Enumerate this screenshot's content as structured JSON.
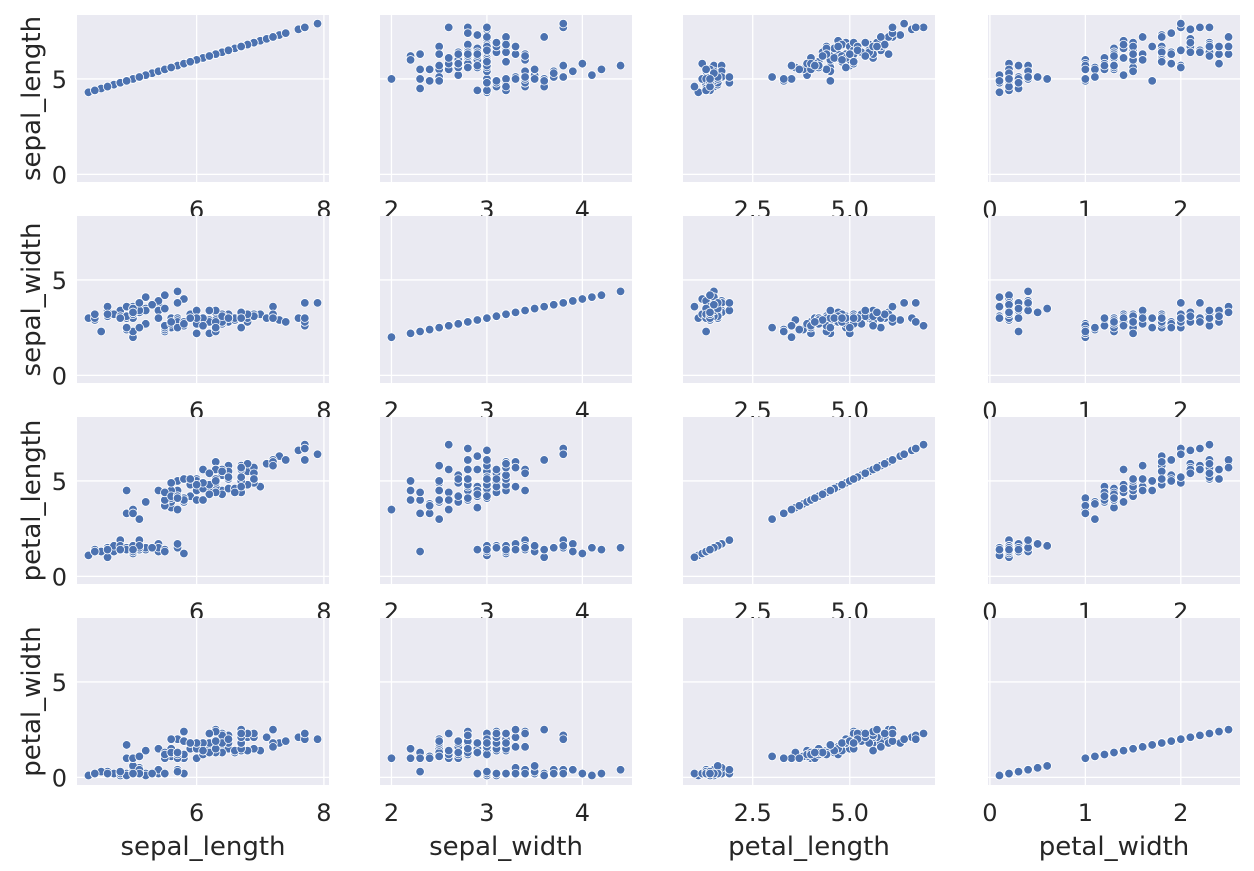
{
  "chart_data": {
    "type": "scatter",
    "layout": "pairplot 4x4, scatter on diagonal, shared y axis",
    "variables": [
      "sepal_length",
      "sepal_width",
      "petal_length",
      "petal_width"
    ],
    "x_ticks": [
      [
        6,
        8
      ],
      [
        2,
        3,
        4
      ],
      [
        "2.5",
        "5.0"
      ],
      [
        0,
        1,
        2
      ]
    ],
    "x_tick_values": [
      [
        6,
        8
      ],
      [
        2,
        3,
        4
      ],
      [
        2.5,
        5.0
      ],
      [
        0,
        1,
        2
      ]
    ],
    "x_ranges": [
      [
        4.12,
        8.08
      ],
      [
        1.88,
        4.52
      ],
      [
        0.705,
        7.195
      ],
      [
        -0.02,
        2.62
      ]
    ],
    "y_ticks": [
      0,
      5
    ],
    "y_range": [
      -0.4,
      8.35
    ],
    "grid": true,
    "colors": {
      "background": "#eaeaf2",
      "point": "#4c72b0",
      "point_edge": "#ffffff",
      "grid": "#ffffff",
      "text": "#262626"
    },
    "rows": [
      [
        5.1,
        3.5,
        1.4,
        0.2
      ],
      [
        4.9,
        3.0,
        1.4,
        0.2
      ],
      [
        4.7,
        3.2,
        1.3,
        0.2
      ],
      [
        4.6,
        3.1,
        1.5,
        0.2
      ],
      [
        5.0,
        3.6,
        1.4,
        0.2
      ],
      [
        5.4,
        3.9,
        1.7,
        0.4
      ],
      [
        4.6,
        3.4,
        1.4,
        0.3
      ],
      [
        5.0,
        3.4,
        1.5,
        0.2
      ],
      [
        4.4,
        2.9,
        1.4,
        0.2
      ],
      [
        4.9,
        3.1,
        1.5,
        0.1
      ],
      [
        5.4,
        3.7,
        1.5,
        0.2
      ],
      [
        4.8,
        3.4,
        1.6,
        0.2
      ],
      [
        4.8,
        3.0,
        1.4,
        0.1
      ],
      [
        4.3,
        3.0,
        1.1,
        0.1
      ],
      [
        5.8,
        4.0,
        1.2,
        0.2
      ],
      [
        5.7,
        4.4,
        1.5,
        0.4
      ],
      [
        5.4,
        3.9,
        1.3,
        0.4
      ],
      [
        5.1,
        3.5,
        1.4,
        0.3
      ],
      [
        5.7,
        3.8,
        1.7,
        0.3
      ],
      [
        5.1,
        3.8,
        1.5,
        0.3
      ],
      [
        5.4,
        3.4,
        1.7,
        0.2
      ],
      [
        5.1,
        3.7,
        1.5,
        0.4
      ],
      [
        4.6,
        3.6,
        1.0,
        0.2
      ],
      [
        5.1,
        3.3,
        1.7,
        0.5
      ],
      [
        4.8,
        3.4,
        1.9,
        0.2
      ],
      [
        5.0,
        3.0,
        1.6,
        0.2
      ],
      [
        5.0,
        3.4,
        1.6,
        0.4
      ],
      [
        5.2,
        3.5,
        1.5,
        0.2
      ],
      [
        5.2,
        3.4,
        1.4,
        0.2
      ],
      [
        4.7,
        3.2,
        1.6,
        0.2
      ],
      [
        4.8,
        3.1,
        1.6,
        0.2
      ],
      [
        5.4,
        3.4,
        1.5,
        0.4
      ],
      [
        5.2,
        4.1,
        1.5,
        0.1
      ],
      [
        5.5,
        4.2,
        1.4,
        0.2
      ],
      [
        4.9,
        3.1,
        1.5,
        0.2
      ],
      [
        5.0,
        3.2,
        1.2,
        0.2
      ],
      [
        5.5,
        3.5,
        1.3,
        0.2
      ],
      [
        4.9,
        3.6,
        1.4,
        0.1
      ],
      [
        4.4,
        3.0,
        1.3,
        0.2
      ],
      [
        5.1,
        3.4,
        1.5,
        0.2
      ],
      [
        5.0,
        3.5,
        1.3,
        0.3
      ],
      [
        4.5,
        2.3,
        1.3,
        0.3
      ],
      [
        4.4,
        3.2,
        1.3,
        0.2
      ],
      [
        5.0,
        3.5,
        1.6,
        0.6
      ],
      [
        5.1,
        3.8,
        1.9,
        0.4
      ],
      [
        4.8,
        3.0,
        1.4,
        0.3
      ],
      [
        5.1,
        3.8,
        1.6,
        0.2
      ],
      [
        4.6,
        3.2,
        1.4,
        0.2
      ],
      [
        5.3,
        3.7,
        1.5,
        0.2
      ],
      [
        5.0,
        3.3,
        1.4,
        0.2
      ],
      [
        7.0,
        3.2,
        4.7,
        1.4
      ],
      [
        6.4,
        3.2,
        4.5,
        1.5
      ],
      [
        6.9,
        3.1,
        4.9,
        1.5
      ],
      [
        5.5,
        2.3,
        4.0,
        1.3
      ],
      [
        6.5,
        2.8,
        4.6,
        1.5
      ],
      [
        5.7,
        2.8,
        4.5,
        1.3
      ],
      [
        6.3,
        3.3,
        4.7,
        1.6
      ],
      [
        4.9,
        2.4,
        3.3,
        1.0
      ],
      [
        6.6,
        2.9,
        4.6,
        1.3
      ],
      [
        5.2,
        2.7,
        3.9,
        1.4
      ],
      [
        5.0,
        2.0,
        3.5,
        1.0
      ],
      [
        5.9,
        3.0,
        4.2,
        1.5
      ],
      [
        6.0,
        2.2,
        4.0,
        1.0
      ],
      [
        6.1,
        2.9,
        4.7,
        1.4
      ],
      [
        5.6,
        2.9,
        3.6,
        1.3
      ],
      [
        6.7,
        3.1,
        4.4,
        1.4
      ],
      [
        5.6,
        3.0,
        4.5,
        1.5
      ],
      [
        5.8,
        2.7,
        4.1,
        1.0
      ],
      [
        6.2,
        2.2,
        4.5,
        1.5
      ],
      [
        5.6,
        2.5,
        3.9,
        1.1
      ],
      [
        5.9,
        3.2,
        4.8,
        1.8
      ],
      [
        6.1,
        2.8,
        4.0,
        1.3
      ],
      [
        6.3,
        2.5,
        4.9,
        1.5
      ],
      [
        6.1,
        2.8,
        4.7,
        1.2
      ],
      [
        6.4,
        2.9,
        4.3,
        1.3
      ],
      [
        6.6,
        3.0,
        4.4,
        1.4
      ],
      [
        6.8,
        2.8,
        4.8,
        1.4
      ],
      [
        6.7,
        3.0,
        5.0,
        1.7
      ],
      [
        6.0,
        2.9,
        4.5,
        1.5
      ],
      [
        5.7,
        2.6,
        3.5,
        1.0
      ],
      [
        5.5,
        2.4,
        3.8,
        1.1
      ],
      [
        5.5,
        2.4,
        3.7,
        1.0
      ],
      [
        5.8,
        2.7,
        3.9,
        1.2
      ],
      [
        6.0,
        2.7,
        5.1,
        1.6
      ],
      [
        5.4,
        3.0,
        4.5,
        1.5
      ],
      [
        6.0,
        3.4,
        4.5,
        1.6
      ],
      [
        6.7,
        3.1,
        4.7,
        1.5
      ],
      [
        6.3,
        2.3,
        4.4,
        1.3
      ],
      [
        5.6,
        3.0,
        4.1,
        1.3
      ],
      [
        5.5,
        2.5,
        4.0,
        1.3
      ],
      [
        5.5,
        2.6,
        4.4,
        1.2
      ],
      [
        6.1,
        3.0,
        4.6,
        1.4
      ],
      [
        5.8,
        2.6,
        4.0,
        1.2
      ],
      [
        5.0,
        2.3,
        3.3,
        1.0
      ],
      [
        5.6,
        2.7,
        4.2,
        1.3
      ],
      [
        5.7,
        3.0,
        4.2,
        1.2
      ],
      [
        5.7,
        2.9,
        4.2,
        1.3
      ],
      [
        6.2,
        2.9,
        4.3,
        1.3
      ],
      [
        5.1,
        2.5,
        3.0,
        1.1
      ],
      [
        5.7,
        2.8,
        4.1,
        1.3
      ],
      [
        6.3,
        3.3,
        6.0,
        2.5
      ],
      [
        5.8,
        2.7,
        5.1,
        1.9
      ],
      [
        7.1,
        3.0,
        5.9,
        2.1
      ],
      [
        6.3,
        2.9,
        5.6,
        1.8
      ],
      [
        6.5,
        3.0,
        5.8,
        2.2
      ],
      [
        7.6,
        3.0,
        6.6,
        2.1
      ],
      [
        4.9,
        2.5,
        4.5,
        1.7
      ],
      [
        7.3,
        2.9,
        6.3,
        1.8
      ],
      [
        6.7,
        2.5,
        5.8,
        1.8
      ],
      [
        7.2,
        3.6,
        6.1,
        2.5
      ],
      [
        6.5,
        3.2,
        5.1,
        2.0
      ],
      [
        6.4,
        2.7,
        5.3,
        1.9
      ],
      [
        6.8,
        3.0,
        5.5,
        2.1
      ],
      [
        5.7,
        2.5,
        5.0,
        2.0
      ],
      [
        5.8,
        2.8,
        5.1,
        2.4
      ],
      [
        6.4,
        3.2,
        5.3,
        2.3
      ],
      [
        6.5,
        3.0,
        5.5,
        1.8
      ],
      [
        7.7,
        3.8,
        6.7,
        2.2
      ],
      [
        7.7,
        2.6,
        6.9,
        2.3
      ],
      [
        6.0,
        2.2,
        5.0,
        1.5
      ],
      [
        6.9,
        3.2,
        5.7,
        2.3
      ],
      [
        5.6,
        2.8,
        4.9,
        2.0
      ],
      [
        7.7,
        2.8,
        6.7,
        2.0
      ],
      [
        6.3,
        2.7,
        4.9,
        1.8
      ],
      [
        6.7,
        3.3,
        5.7,
        2.1
      ],
      [
        7.2,
        3.2,
        6.0,
        1.8
      ],
      [
        6.2,
        2.8,
        4.8,
        1.8
      ],
      [
        6.1,
        3.0,
        4.9,
        1.8
      ],
      [
        6.4,
        2.8,
        5.6,
        2.1
      ],
      [
        7.2,
        3.0,
        5.8,
        1.6
      ],
      [
        7.4,
        2.8,
        6.1,
        1.9
      ],
      [
        7.9,
        3.8,
        6.4,
        2.0
      ],
      [
        6.4,
        2.8,
        5.6,
        2.2
      ],
      [
        6.3,
        2.8,
        5.1,
        1.5
      ],
      [
        6.1,
        2.6,
        5.6,
        1.4
      ],
      [
        7.7,
        3.0,
        6.1,
        2.3
      ],
      [
        6.3,
        3.4,
        5.6,
        2.4
      ],
      [
        6.4,
        3.1,
        5.5,
        1.8
      ],
      [
        6.0,
        3.0,
        4.8,
        1.8
      ],
      [
        6.9,
        3.1,
        5.4,
        2.1
      ],
      [
        6.7,
        3.1,
        5.6,
        2.4
      ],
      [
        6.9,
        3.1,
        5.1,
        2.3
      ],
      [
        5.8,
        2.7,
        5.1,
        1.9
      ],
      [
        6.8,
        3.2,
        5.9,
        2.3
      ],
      [
        6.7,
        3.3,
        5.7,
        2.5
      ],
      [
        6.7,
        3.0,
        5.2,
        2.3
      ],
      [
        6.3,
        2.5,
        5.0,
        1.9
      ],
      [
        6.5,
        3.0,
        5.2,
        2.0
      ],
      [
        6.2,
        3.4,
        5.4,
        2.3
      ],
      [
        5.9,
        3.0,
        5.1,
        1.8
      ]
    ]
  }
}
